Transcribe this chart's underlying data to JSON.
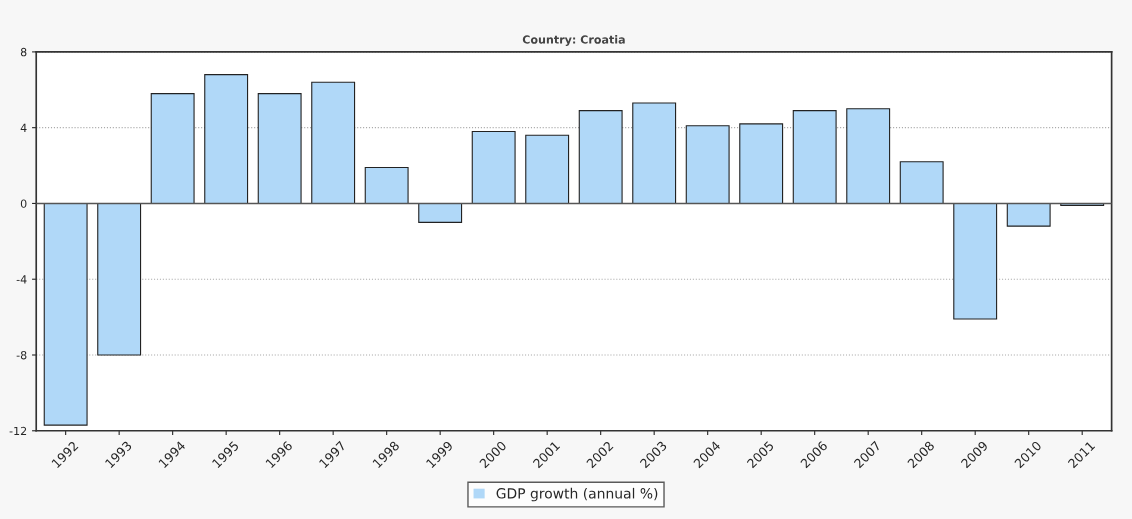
{
  "chart_data": {
    "type": "bar",
    "title": "Country: Croatia",
    "categories": [
      "1992",
      "1993",
      "1994",
      "1995",
      "1996",
      "1997",
      "1998",
      "1999",
      "2000",
      "2001",
      "2002",
      "2003",
      "2004",
      "2005",
      "2006",
      "2007",
      "2008",
      "2009",
      "2010",
      "2011"
    ],
    "series": [
      {
        "name": "GDP growth (annual %)",
        "color": "#b0d8f8",
        "values": [
          -11.7,
          -8.0,
          5.8,
          6.8,
          5.8,
          6.4,
          1.9,
          -1.0,
          3.8,
          3.6,
          4.9,
          5.3,
          4.1,
          4.2,
          4.9,
          5.0,
          2.2,
          -6.1,
          -1.2,
          -0.1
        ]
      }
    ],
    "ylim": [
      -12,
      8
    ],
    "yticks": [
      -12,
      -8,
      -4,
      0,
      4,
      8
    ],
    "grid": "y",
    "legend": "bottom"
  }
}
